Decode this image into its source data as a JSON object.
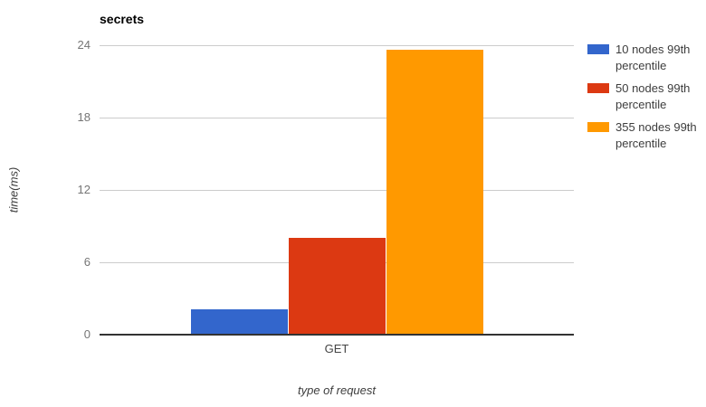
{
  "chart_data": {
    "type": "bar",
    "title": "secrets",
    "categories": [
      "GET"
    ],
    "series": [
      {
        "name": "10 nodes 99th percentile",
        "color": "#3366CC",
        "values": [
          2
        ]
      },
      {
        "name": "50 nodes 99th percentile",
        "color": "#DC3912",
        "values": [
          8
        ]
      },
      {
        "name": "355 nodes 99th percentile",
        "color": "#FF9900",
        "values": [
          23.6
        ]
      }
    ],
    "xlabel": "type of request",
    "ylabel": "time(ms)",
    "ylim": [
      0,
      24
    ],
    "yticks": [
      0,
      6,
      12,
      18,
      24
    ],
    "grid": true,
    "legend_position": "right",
    "colors": {
      "gridline": "#cccccc",
      "axis_line": "#333333",
      "tick_label": "#757575",
      "axis_title": "#3d3d3d"
    }
  }
}
